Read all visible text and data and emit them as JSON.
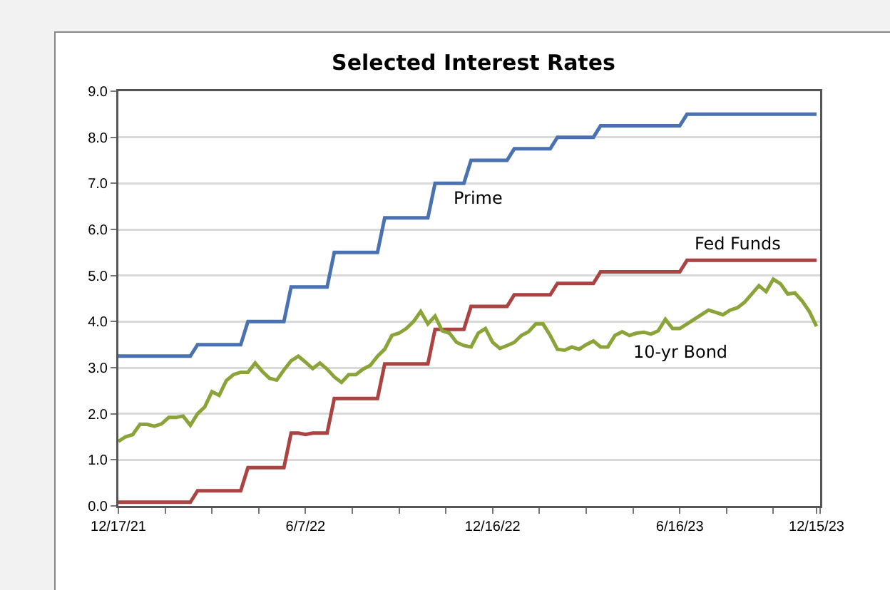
{
  "chart_data": {
    "type": "line",
    "title": "Selected Interest Rates",
    "categories": [
      "12/17/21",
      null,
      null,
      null,
      null,
      null,
      null,
      null,
      null,
      null,
      null,
      null,
      null,
      null,
      null,
      null,
      null,
      null,
      null,
      null,
      null,
      null,
      null,
      null,
      null,
      null,
      "6/7/22",
      null,
      null,
      null,
      null,
      null,
      null,
      null,
      null,
      null,
      null,
      null,
      null,
      null,
      null,
      null,
      null,
      null,
      null,
      null,
      null,
      null,
      null,
      null,
      null,
      null,
      "12/16/22",
      null,
      null,
      null,
      null,
      null,
      null,
      null,
      null,
      null,
      null,
      null,
      null,
      null,
      null,
      null,
      null,
      null,
      null,
      null,
      null,
      null,
      null,
      null,
      null,
      null,
      "6/16/23",
      null,
      null,
      null,
      null,
      null,
      null,
      null,
      null,
      null,
      null,
      null,
      null,
      null,
      null,
      null,
      null,
      null,
      null,
      "12/15/23"
    ],
    "series": [
      {
        "name": "Prime",
        "color": "#4a72b0",
        "values": [
          3.25,
          3.25,
          3.25,
          3.25,
          3.25,
          3.25,
          3.25,
          3.25,
          3.25,
          3.25,
          3.25,
          3.5,
          3.5,
          3.5,
          3.5,
          3.5,
          3.5,
          3.5,
          4.0,
          4.0,
          4.0,
          4.0,
          4.0,
          4.0,
          4.75,
          4.75,
          4.75,
          4.75,
          4.75,
          4.75,
          5.5,
          5.5,
          5.5,
          5.5,
          5.5,
          5.5,
          5.5,
          6.25,
          6.25,
          6.25,
          6.25,
          6.25,
          6.25,
          6.25,
          7.0,
          7.0,
          7.0,
          7.0,
          7.0,
          7.5,
          7.5,
          7.5,
          7.5,
          7.5,
          7.5,
          7.75,
          7.75,
          7.75,
          7.75,
          7.75,
          7.75,
          8.0,
          8.0,
          8.0,
          8.0,
          8.0,
          8.0,
          8.25,
          8.25,
          8.25,
          8.25,
          8.25,
          8.25,
          8.25,
          8.25,
          8.25,
          8.25,
          8.25,
          8.25,
          8.5,
          8.5,
          8.5,
          8.5,
          8.5,
          8.5,
          8.5,
          8.5,
          8.5,
          8.5,
          8.5,
          8.5,
          8.5,
          8.5,
          8.5,
          8.5,
          8.5,
          8.5,
          8.5
        ]
      },
      {
        "name": "Fed Funds",
        "color": "#a94442",
        "values": [
          0.08,
          0.08,
          0.08,
          0.08,
          0.08,
          0.08,
          0.08,
          0.08,
          0.08,
          0.08,
          0.08,
          0.33,
          0.33,
          0.33,
          0.33,
          0.33,
          0.33,
          0.33,
          0.83,
          0.83,
          0.83,
          0.83,
          0.83,
          0.83,
          1.58,
          1.58,
          1.55,
          1.58,
          1.58,
          1.58,
          2.33,
          2.33,
          2.33,
          2.33,
          2.33,
          2.33,
          2.33,
          3.08,
          3.08,
          3.08,
          3.08,
          3.08,
          3.08,
          3.08,
          3.83,
          3.83,
          3.83,
          3.83,
          3.83,
          4.33,
          4.33,
          4.33,
          4.33,
          4.33,
          4.33,
          4.58,
          4.58,
          4.58,
          4.58,
          4.58,
          4.58,
          4.83,
          4.83,
          4.83,
          4.83,
          4.83,
          4.83,
          5.08,
          5.08,
          5.08,
          5.08,
          5.08,
          5.08,
          5.08,
          5.08,
          5.08,
          5.08,
          5.08,
          5.08,
          5.33,
          5.33,
          5.33,
          5.33,
          5.33,
          5.33,
          5.33,
          5.33,
          5.33,
          5.33,
          5.33,
          5.33,
          5.33,
          5.33,
          5.33,
          5.33,
          5.33,
          5.33,
          5.33
        ]
      },
      {
        "name": "10-yr Bond",
        "color": "#8aa43a",
        "values": [
          1.4,
          1.5,
          1.55,
          1.77,
          1.77,
          1.73,
          1.78,
          1.92,
          1.92,
          1.95,
          1.75,
          2.0,
          2.15,
          2.48,
          2.4,
          2.72,
          2.85,
          2.9,
          2.9,
          3.1,
          2.92,
          2.77,
          2.73,
          2.95,
          3.15,
          3.25,
          3.12,
          2.98,
          3.1,
          2.97,
          2.8,
          2.68,
          2.85,
          2.85,
          2.97,
          3.05,
          3.25,
          3.4,
          3.7,
          3.75,
          3.85,
          4.0,
          4.22,
          3.95,
          4.12,
          3.8,
          3.75,
          3.55,
          3.48,
          3.45,
          3.75,
          3.85,
          3.55,
          3.42,
          3.48,
          3.55,
          3.7,
          3.78,
          3.95,
          3.95,
          3.7,
          3.4,
          3.38,
          3.45,
          3.4,
          3.5,
          3.58,
          3.45,
          3.45,
          3.7,
          3.78,
          3.7,
          3.75,
          3.77,
          3.73,
          3.8,
          4.05,
          3.85,
          3.85,
          3.95,
          4.05,
          4.15,
          4.25,
          4.2,
          4.15,
          4.25,
          4.3,
          4.42,
          4.6,
          4.78,
          4.65,
          4.92,
          4.82,
          4.6,
          4.62,
          4.45,
          4.22,
          3.9
        ]
      }
    ],
    "ylim": [
      0,
      9
    ],
    "yticks": [
      {
        "value": 0,
        "label": "0.0"
      },
      {
        "value": 1,
        "label": "1.0"
      },
      {
        "value": 2,
        "label": "2.0"
      },
      {
        "value": 3,
        "label": "3.0"
      },
      {
        "value": 4,
        "label": "4.0"
      },
      {
        "value": 5,
        "label": "5.0"
      },
      {
        "value": 6,
        "label": "6.0"
      },
      {
        "value": 7,
        "label": "7.0"
      },
      {
        "value": 8,
        "label": "8.0"
      },
      {
        "value": 9,
        "label": "9.0"
      }
    ],
    "grid": "y",
    "legend": false,
    "marker": "none",
    "line_style": "solid"
  }
}
